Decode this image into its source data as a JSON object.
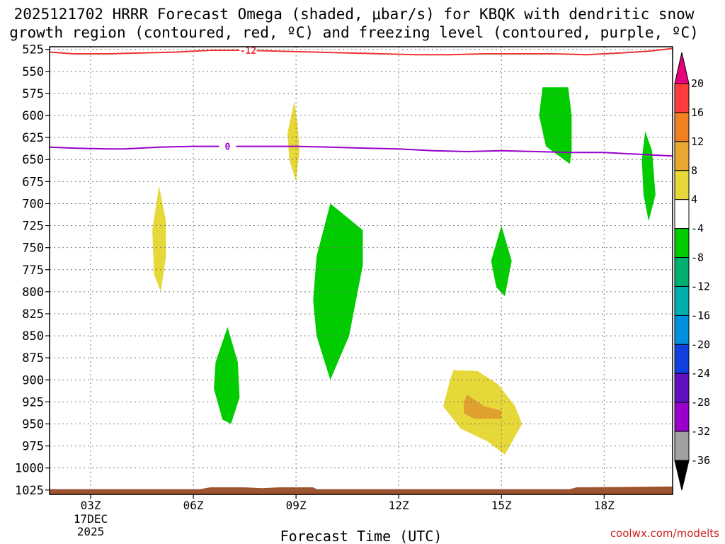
{
  "chart_data": {
    "type": "contour",
    "title_line1": "2025121702 HRRR Forecast Omega (shaded, μbar/s) for KBQK with dendritic snow",
    "title_line2": "growth region (contoured, red, ºC) and freezing level (contoured, purple, ºC)",
    "xlabel": "Forecast Time (UTC)",
    "ylabel": "",
    "x_range_hours": [
      1.8,
      20.0
    ],
    "y_range_hPa": [
      522,
      1030
    ],
    "x_ticks": [
      {
        "hour": 3,
        "label": "03Z"
      },
      {
        "hour": 6,
        "label": "06Z"
      },
      {
        "hour": 9,
        "label": "09Z"
      },
      {
        "hour": 12,
        "label": "12Z"
      },
      {
        "hour": 15,
        "label": "15Z"
      },
      {
        "hour": 18,
        "label": "18Z"
      }
    ],
    "date_line1": "17DEC",
    "date_line2": "2025",
    "y_ticks": [
      525,
      550,
      575,
      600,
      625,
      650,
      675,
      700,
      725,
      750,
      775,
      800,
      825,
      850,
      875,
      900,
      925,
      950,
      975,
      1000,
      1025
    ],
    "grid": true,
    "dendritic_contour": {
      "label": "-12",
      "color": "#ee3333",
      "points": [
        [
          1.8,
          528
        ],
        [
          2.5,
          530
        ],
        [
          3.5,
          530
        ],
        [
          4.5,
          529
        ],
        [
          5.5,
          528
        ],
        [
          6.5,
          526
        ],
        [
          7.5,
          526
        ],
        [
          8.5,
          527
        ],
        [
          9.5,
          528
        ],
        [
          10.5,
          529
        ],
        [
          11.5,
          530
        ],
        [
          12.5,
          531
        ],
        [
          13.5,
          531
        ],
        [
          14.5,
          530
        ],
        [
          15.5,
          530
        ],
        [
          16.5,
          530
        ],
        [
          17.5,
          531
        ],
        [
          18.5,
          529
        ],
        [
          19.3,
          527
        ],
        [
          20.0,
          524
        ]
      ]
    },
    "freezing_contour": {
      "label": "0",
      "color": "#9900cc",
      "points": [
        [
          1.8,
          636
        ],
        [
          2.5,
          637
        ],
        [
          3.5,
          638
        ],
        [
          4.0,
          638
        ],
        [
          5.0,
          636
        ],
        [
          6.0,
          635
        ],
        [
          7.0,
          635
        ],
        [
          8.0,
          635
        ],
        [
          9.0,
          635
        ],
        [
          10.0,
          636
        ],
        [
          11.0,
          637
        ],
        [
          12.0,
          638
        ],
        [
          13.0,
          640
        ],
        [
          14.0,
          641
        ],
        [
          15.0,
          640
        ],
        [
          16.0,
          641
        ],
        [
          17.0,
          642
        ],
        [
          18.0,
          642
        ],
        [
          19.0,
          644
        ],
        [
          20.0,
          646
        ]
      ]
    },
    "shaded_regions": [
      {
        "name": "omega-pos-4-8",
        "color": "#e6d838",
        "points": [
          [
            5.0,
            680
          ],
          [
            5.2,
            720
          ],
          [
            5.2,
            760
          ],
          [
            5.05,
            800
          ],
          [
            4.85,
            780
          ],
          [
            4.8,
            730
          ]
        ]
      },
      {
        "name": "omega-pos-4-8",
        "color": "#e6d838",
        "points": [
          [
            8.95,
            584
          ],
          [
            9.05,
            610
          ],
          [
            9.1,
            640
          ],
          [
            9.0,
            675
          ],
          [
            8.8,
            650
          ],
          [
            8.75,
            620
          ]
        ]
      },
      {
        "name": "omega-pos-4-8",
        "color": "#e6d838",
        "points": [
          [
            13.6,
            889
          ],
          [
            14.3,
            890
          ],
          [
            14.9,
            905
          ],
          [
            15.4,
            930
          ],
          [
            15.6,
            950
          ],
          [
            15.1,
            985
          ],
          [
            14.6,
            970
          ],
          [
            13.8,
            955
          ],
          [
            13.3,
            930
          ],
          [
            13.5,
            900
          ]
        ]
      },
      {
        "name": "omega-pos-8-12",
        "color": "#e0a030",
        "points": [
          [
            14.0,
            917
          ],
          [
            14.5,
            930
          ],
          [
            15.0,
            935
          ],
          [
            15.0,
            944
          ],
          [
            14.2,
            944
          ],
          [
            13.9,
            938
          ],
          [
            13.9,
            925
          ]
        ]
      },
      {
        "name": "omega-neg-4-8",
        "color": "#00cc00",
        "points": [
          [
            7.0,
            840
          ],
          [
            7.3,
            880
          ],
          [
            7.35,
            920
          ],
          [
            7.1,
            950
          ],
          [
            6.85,
            945
          ],
          [
            6.6,
            910
          ],
          [
            6.65,
            880
          ]
        ]
      },
      {
        "name": "omega-neg-4-8",
        "color": "#00cc00",
        "points": [
          [
            10.0,
            700
          ],
          [
            10.95,
            730
          ],
          [
            10.95,
            770
          ],
          [
            10.55,
            850
          ],
          [
            10.0,
            900
          ],
          [
            9.6,
            850
          ],
          [
            9.5,
            810
          ],
          [
            9.6,
            760
          ]
        ]
      },
      {
        "name": "omega-neg-4-8",
        "color": "#00cc00",
        "points": [
          [
            15.0,
            725
          ],
          [
            15.3,
            765
          ],
          [
            15.1,
            805
          ],
          [
            14.85,
            795
          ],
          [
            14.7,
            765
          ]
        ]
      },
      {
        "name": "omega-neg-4-8",
        "color": "#00cc00",
        "points": [
          [
            16.2,
            568
          ],
          [
            16.95,
            568
          ],
          [
            17.05,
            600
          ],
          [
            17.05,
            640
          ],
          [
            17.0,
            655
          ],
          [
            16.3,
            635
          ],
          [
            16.1,
            600
          ]
        ]
      },
      {
        "name": "omega-neg-4-8",
        "color": "#00cc00",
        "points": [
          [
            19.2,
            618
          ],
          [
            19.4,
            640
          ],
          [
            19.5,
            690
          ],
          [
            19.3,
            720
          ],
          [
            19.15,
            690
          ],
          [
            19.1,
            650
          ]
        ]
      },
      {
        "name": "terrain",
        "color": "#a0522d",
        "points": [
          [
            1.8,
            1024
          ],
          [
            6.2,
            1024
          ],
          [
            6.5,
            1022
          ],
          [
            7.5,
            1022
          ],
          [
            8.0,
            1023
          ],
          [
            8.5,
            1022
          ],
          [
            9.5,
            1022
          ],
          [
            9.6,
            1024
          ],
          [
            17.0,
            1024
          ],
          [
            17.2,
            1022
          ],
          [
            20.0,
            1021
          ],
          [
            20.0,
            1030
          ],
          [
            1.8,
            1030
          ]
        ]
      }
    ],
    "colorbar": {
      "labels": [
        "20",
        "16",
        "12",
        "8",
        "4",
        "-4",
        "-8",
        "-12",
        "-16",
        "-20",
        "-24",
        "-28",
        "-32",
        "-36"
      ],
      "top_arrow_color": "#e6007e",
      "bottom_arrow_color": "#000000",
      "colors": [
        "#ff3b3b",
        "#f08020",
        "#e6a830",
        "#e6d838",
        "#ffffff",
        "#00cc00",
        "#00b070",
        "#00b0b0",
        "#0090e0",
        "#1040e0",
        "#6010c0",
        "#9900cc",
        "#a0a0a0"
      ]
    }
  },
  "credit": "coolwx.com/modelts"
}
